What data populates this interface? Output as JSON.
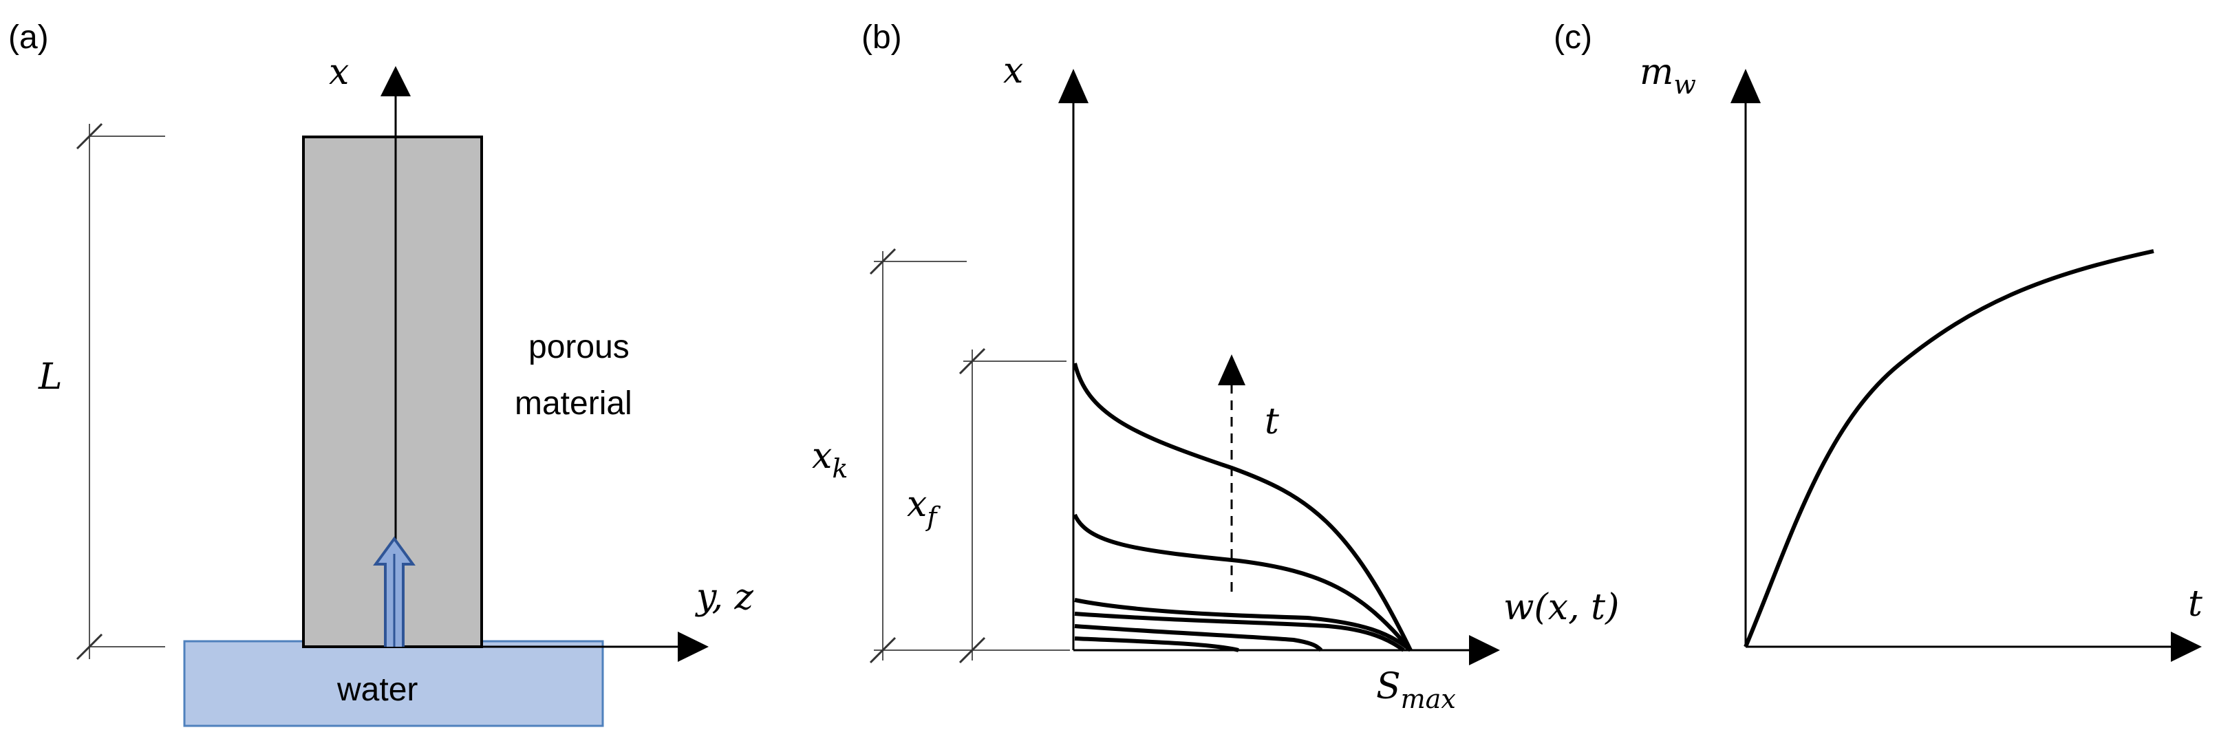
{
  "panels": {
    "a": {
      "tag": "(a)",
      "axis_x": "x",
      "axis_yz": "y, z",
      "length": "L",
      "material_line1": "porous",
      "material_line2": "material",
      "water": "water"
    },
    "b": {
      "tag": "(b)",
      "axis_x": "x",
      "axis_w": "w(x, t)",
      "xk_main": "x",
      "xk_sub": "k",
      "xf_main": "x",
      "xf_sub": "f",
      "t_arrow": "t",
      "smax_main": "S",
      "smax_sub": "max"
    },
    "c": {
      "tag": "(c)",
      "axis_m_main": "m",
      "axis_m_sub": "w",
      "axis_t": "t"
    }
  },
  "colors": {
    "material_fill": "#bdbdbd",
    "water_fill": "#b4c7e7",
    "water_stroke": "#4f81bd",
    "arrow_blue": "#2f5597"
  }
}
